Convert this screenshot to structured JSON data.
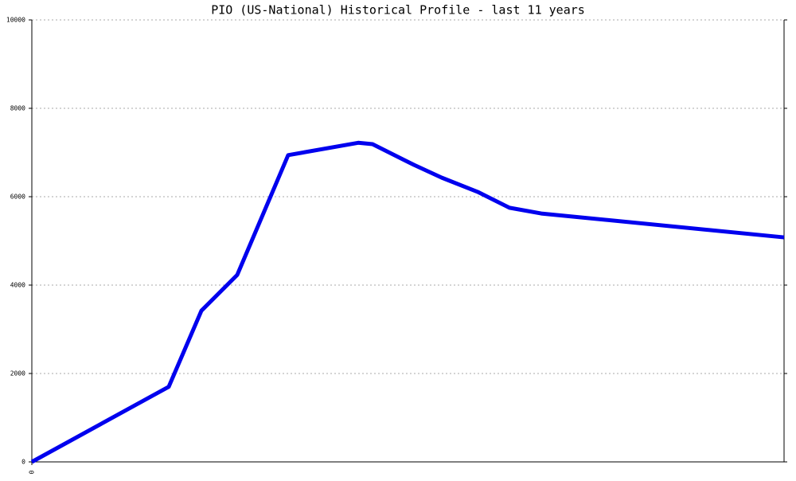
{
  "chart_data": {
    "type": "line",
    "title": "PIO (US-National) Historical Profile - last 11 years",
    "x": [
      0,
      172,
      213,
      258,
      322,
      410,
      428,
      480,
      515,
      560,
      600,
      640,
      945
    ],
    "series": [
      {
        "color": "#0000ee",
        "values": [
          0,
          1700,
          3420,
          4230,
          6940,
          7220,
          7190,
          6720,
          6430,
          6110,
          5750,
          5620,
          5080
        ]
      }
    ],
    "xlim": [
      0,
      945
    ],
    "xticks": [
      0
    ],
    "ylim": [
      0,
      10000
    ],
    "yticks": [
      0,
      2000,
      4000,
      6000,
      8000,
      10000
    ],
    "grid": true
  }
}
